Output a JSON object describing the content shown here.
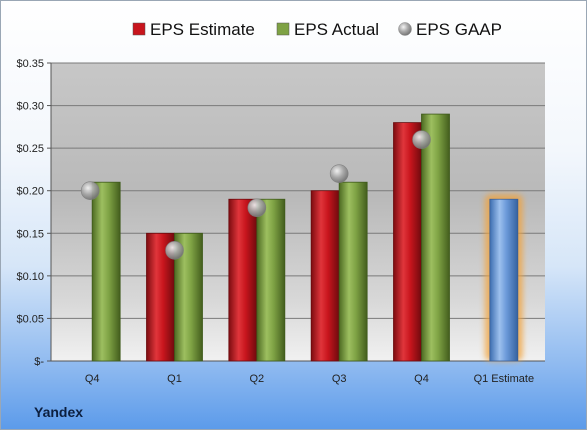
{
  "company": "Yandex",
  "legend": [
    {
      "label": "EPS Estimate",
      "color": "#c8151d",
      "shape": "square"
    },
    {
      "label": "EPS Actual",
      "color": "#7ea244",
      "shape": "square"
    },
    {
      "label": "EPS GAAP",
      "color": "#9a9a9a",
      "shape": "circle"
    }
  ],
  "chart_data": {
    "type": "bar",
    "categories": [
      "Q4",
      "Q1",
      "Q2",
      "Q3",
      "Q4",
      "Q1 Estimate"
    ],
    "series": [
      {
        "name": "EPS Estimate",
        "color": "#c8151d",
        "values": [
          null,
          0.15,
          0.19,
          0.2,
          0.28,
          null
        ]
      },
      {
        "name": "EPS Actual",
        "color": "#7ea244",
        "values": [
          0.21,
          0.15,
          0.19,
          0.21,
          0.29,
          null
        ]
      },
      {
        "name": "EPS GAAP",
        "color": "#9a9a9a",
        "marker": "circle",
        "values": [
          0.2,
          0.13,
          0.18,
          0.22,
          0.26,
          null
        ]
      }
    ],
    "forecast": {
      "category": "Q1 Estimate",
      "value": 0.19,
      "color": "#6a98d8",
      "glow": "#f2a33a"
    },
    "y_ticks": [
      "$-",
      "$0.05",
      "$0.10",
      "$0.15",
      "$0.20",
      "$0.25",
      "$0.30",
      "$0.35"
    ],
    "ylim": [
      0,
      0.35
    ],
    "grid": true,
    "legend_position": "top"
  }
}
